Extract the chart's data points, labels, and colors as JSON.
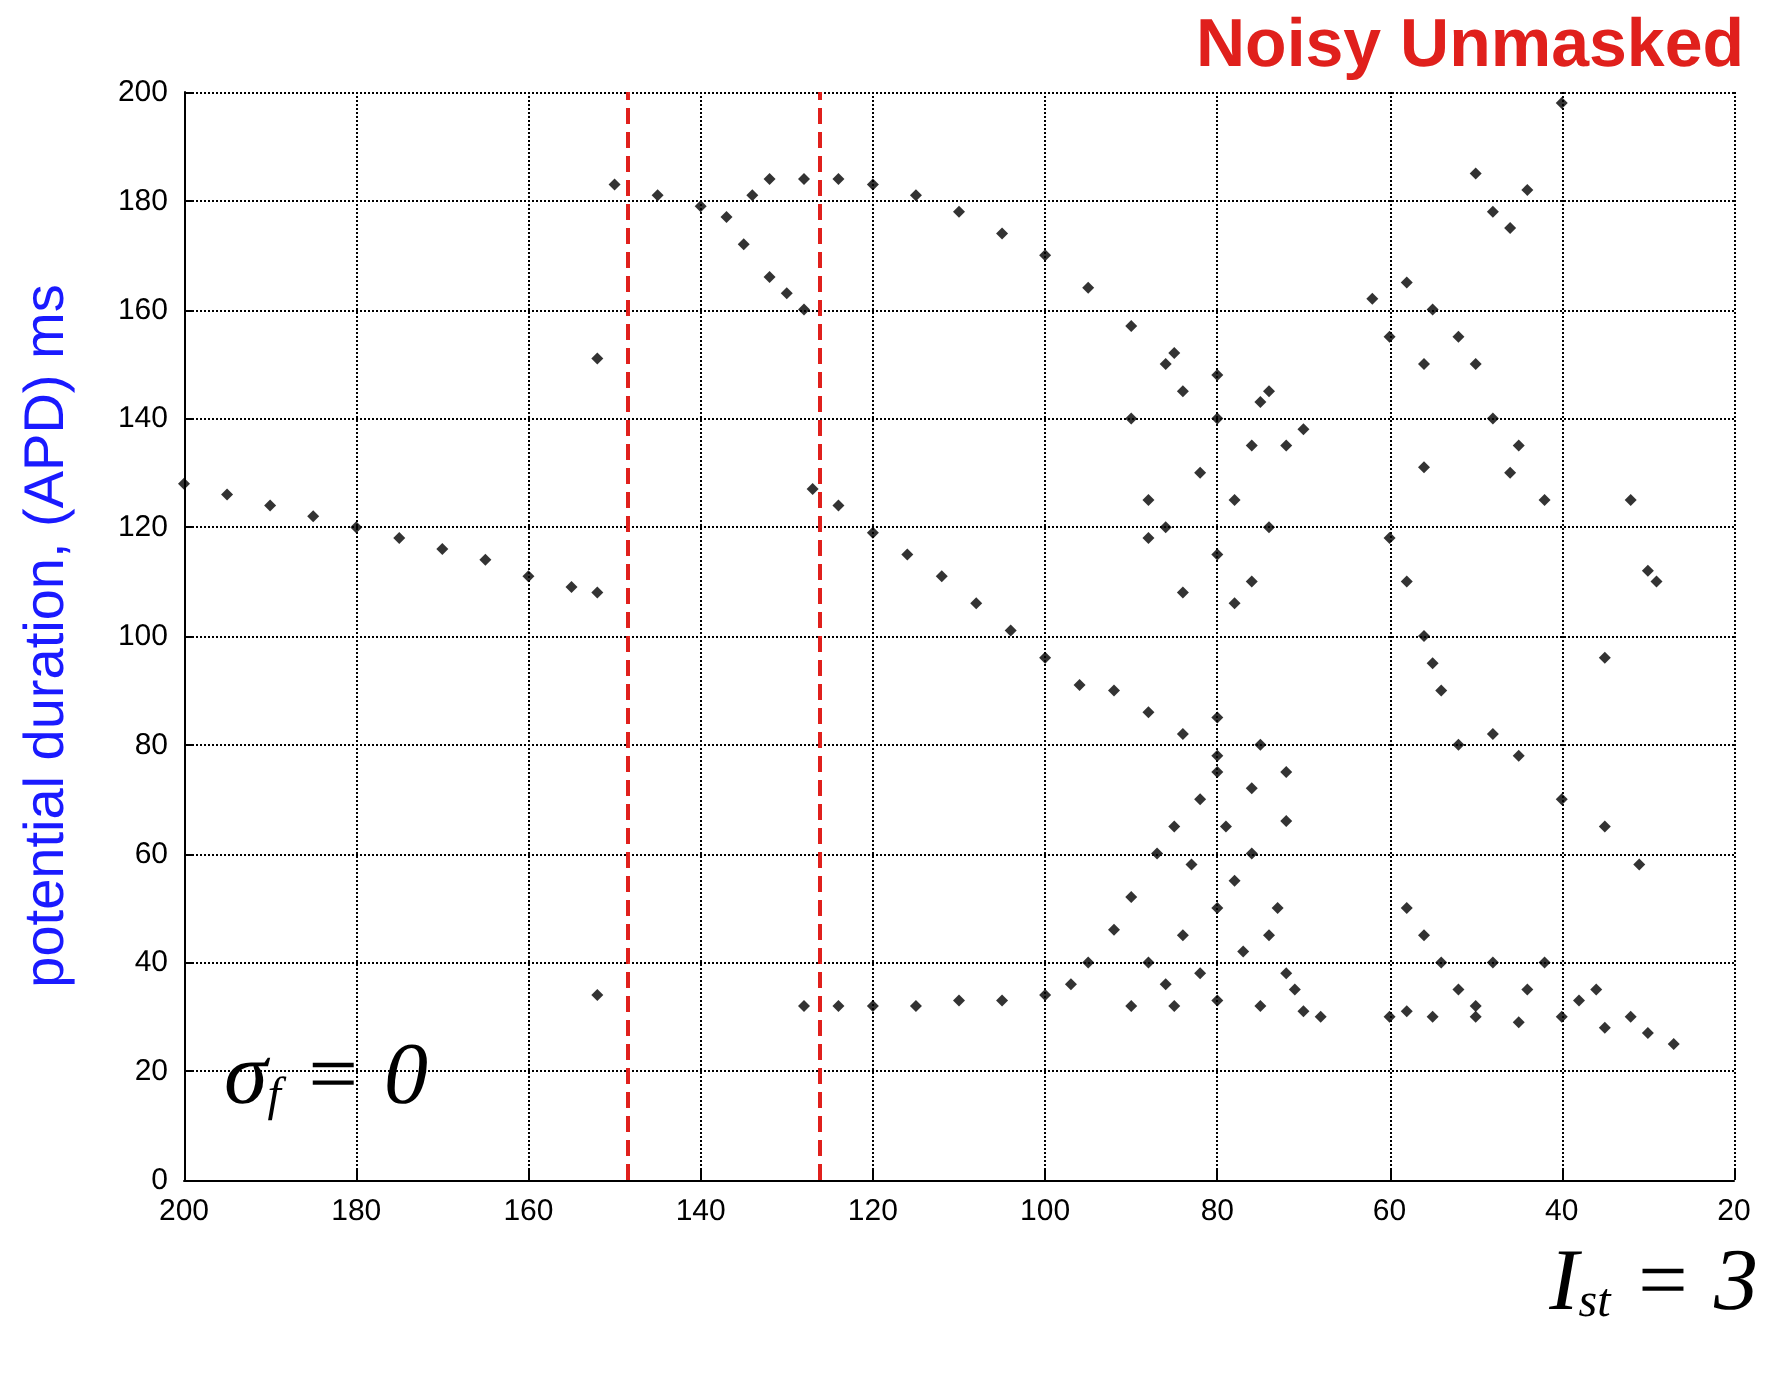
{
  "chart_data": {
    "type": "scatter",
    "title": "Noisy Unmasked",
    "ylabel": "potential duration, (APD) ms",
    "annotations": [
      "σ$_{f}$ = 0",
      "I$_{st}$ = 3"
    ],
    "xlim": [
      200,
      20
    ],
    "xticks": [
      200,
      180,
      160,
      140,
      120,
      100,
      80,
      60,
      40,
      20
    ],
    "ylim": [
      0,
      200
    ],
    "yticks": [
      0,
      20,
      40,
      60,
      80,
      100,
      120,
      140,
      160,
      180,
      200
    ],
    "grid": true,
    "marker": "diamond",
    "ref_lines": [
      {
        "axis": "x",
        "value": 148.4,
        "color": "#e0201c",
        "line_style": "dashed"
      },
      {
        "axis": "x",
        "value": 126.3,
        "color": "#e0201c",
        "line_style": "dashed"
      }
    ],
    "series": [
      {
        "color": "#000000",
        "x": [
          200,
          195,
          190,
          185,
          180,
          175,
          170,
          165,
          160,
          155,
          152,
          152,
          152,
          150,
          145,
          140,
          137,
          134,
          132,
          128,
          124,
          120,
          115,
          110,
          105,
          100,
          95,
          90,
          85,
          80,
          75,
          70,
          135,
          132,
          130,
          128,
          127,
          124,
          120,
          116,
          112,
          108,
          104,
          100,
          96,
          92,
          88,
          84,
          80,
          76,
          72,
          128,
          124,
          120,
          115,
          110,
          105,
          100,
          97,
          95,
          92,
          90,
          87,
          85,
          82,
          80,
          90,
          85,
          80,
          75,
          70,
          68,
          88,
          84,
          80,
          78,
          76,
          74,
          72,
          83,
          79,
          75,
          73,
          71,
          86,
          82,
          77,
          72,
          80,
          90,
          88,
          86,
          84,
          82,
          80,
          78,
          76,
          74,
          72,
          86,
          80,
          76,
          84,
          78,
          88,
          74,
          58,
          55,
          50,
          45,
          40,
          35,
          30,
          27,
          60,
          52,
          48,
          42,
          38,
          32,
          58,
          56,
          54,
          50,
          44,
          36,
          62,
          58,
          55,
          52,
          50,
          48,
          45,
          42,
          60,
          56,
          46,
          50,
          48,
          46,
          44,
          40,
          60,
          58,
          56,
          55,
          54,
          52,
          48,
          45,
          40,
          35,
          31,
          32,
          30,
          35,
          29,
          56
        ],
        "values": [
          128,
          126,
          124,
          122,
          120,
          118,
          116,
          114,
          111,
          109,
          108,
          151,
          34,
          183,
          181,
          179,
          177,
          181,
          184,
          184,
          184,
          183,
          181,
          178,
          174,
          170,
          164,
          157,
          152,
          148,
          143,
          138,
          172,
          166,
          163,
          160,
          127,
          124,
          119,
          115,
          111,
          106,
          101,
          96,
          91,
          90,
          86,
          82,
          78,
          72,
          66,
          32,
          32,
          32,
          32,
          33,
          33,
          34,
          36,
          40,
          46,
          52,
          60,
          65,
          70,
          75,
          32,
          32,
          33,
          32,
          31,
          30,
          40,
          45,
          50,
          55,
          60,
          45,
          38,
          58,
          65,
          80,
          50,
          35,
          36,
          38,
          42,
          75,
          85,
          140,
          125,
          120,
          145,
          130,
          115,
          125,
          110,
          120,
          135,
          150,
          140,
          135,
          108,
          106,
          118,
          145,
          31,
          30,
          30,
          29,
          30,
          28,
          27,
          25,
          30,
          35,
          40,
          40,
          33,
          30,
          50,
          45,
          40,
          32,
          35,
          35,
          162,
          165,
          160,
          155,
          150,
          140,
          135,
          125,
          155,
          150,
          130,
          185,
          178,
          175,
          182,
          198,
          118,
          110,
          100,
          95,
          90,
          80,
          82,
          78,
          70,
          65,
          58,
          125,
          112,
          96,
          110,
          131
        ]
      }
    ]
  }
}
